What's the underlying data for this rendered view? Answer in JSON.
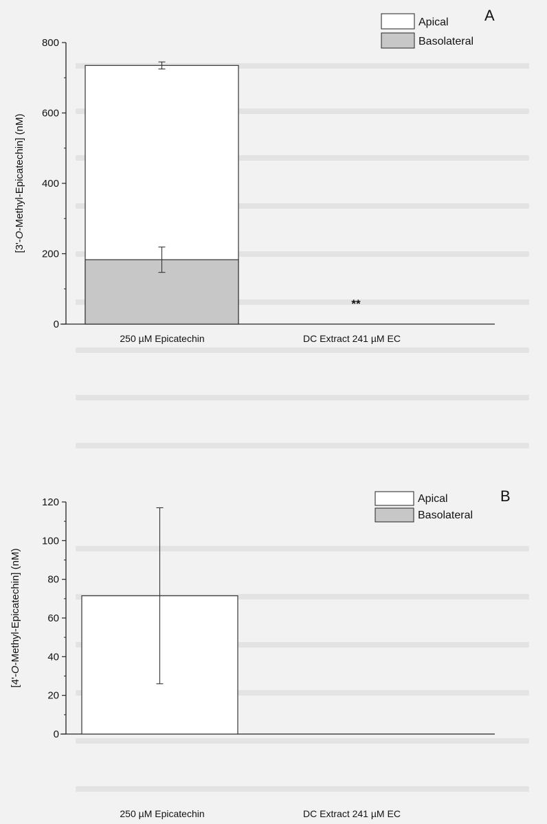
{
  "chart_data": [
    {
      "panel_label": "A",
      "type": "bar",
      "stacked_overlay": true,
      "categories": [
        "250 µM Epicatechin",
        "DC Extract 241 µM EC"
      ],
      "series": [
        {
          "name": "Apical",
          "color": "#ffffff",
          "values": [
            735,
            0
          ],
          "errors": [
            10,
            null
          ]
        },
        {
          "name": "Basolateral",
          "color": "#c7c7c7",
          "values": [
            183,
            0
          ],
          "errors": [
            36,
            null
          ]
        }
      ],
      "annotations": [
        {
          "category_index": 1,
          "text": "**"
        }
      ],
      "ylabel_parts": [
        "[3'-",
        "O",
        "-Methyl-Epicatechin] (nM)"
      ],
      "ylim": [
        0,
        800
      ],
      "yticks": [
        0,
        200,
        400,
        600,
        800
      ],
      "legend_position": "top-right",
      "grid": false
    },
    {
      "panel_label": "B",
      "type": "bar",
      "stacked_overlay": true,
      "categories": [
        "250 µM Epicatechin",
        "DC Extract 241 µM EC"
      ],
      "series": [
        {
          "name": "Apical",
          "color": "#ffffff",
          "values": [
            71.5,
            0
          ],
          "errors": [
            45.5,
            null
          ]
        },
        {
          "name": "Basolateral",
          "color": "#c7c7c7",
          "values": [
            0,
            0
          ],
          "errors": [
            null,
            null
          ]
        }
      ],
      "annotations": [],
      "ylabel_parts": [
        "[4'-",
        "O",
        "-Methyl-Epicatechin] (nM)"
      ],
      "ylim": [
        0,
        120
      ],
      "yticks": [
        0,
        20,
        40,
        60,
        80,
        100,
        120
      ],
      "legend_position": "top-right",
      "grid": false
    }
  ]
}
